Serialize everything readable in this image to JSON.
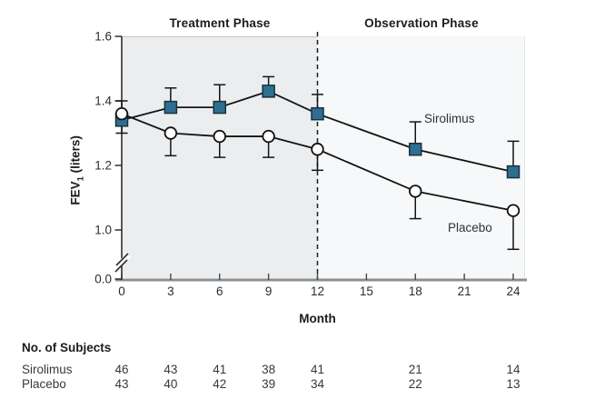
{
  "figure": {
    "y_label": {
      "main": "FEV",
      "sub": "1",
      "units": " (liters)"
    },
    "x_label": "Month"
  },
  "chart_data": {
    "type": "line",
    "title": "",
    "xlabel": "Month",
    "ylabel": "FEV1 (liters)",
    "x": [
      0,
      3,
      6,
      9,
      12,
      18,
      24
    ],
    "xticks": [
      0,
      3,
      6,
      9,
      12,
      15,
      18,
      21,
      24
    ],
    "yticks": [
      0.0,
      1.0,
      1.2,
      1.4,
      1.6
    ],
    "x_range": [
      0,
      24
    ],
    "y_axis_break": true,
    "grid": false,
    "divider_x": 12,
    "phases": [
      {
        "label": "Treatment Phase",
        "x_range": [
          0,
          12
        ],
        "bg": "#ebedef"
      },
      {
        "label": "Observation Phase",
        "x_range": [
          12,
          24
        ],
        "bg": "#f7f8f9"
      }
    ],
    "series": [
      {
        "name": "Sirolimus",
        "marker": "filled-square",
        "fill": "#2e6f91",
        "stroke": "#16323f",
        "values": [
          1.34,
          1.38,
          1.38,
          1.43,
          1.36,
          1.25,
          1.18
        ],
        "error": [
          0.04,
          0.06,
          0.07,
          0.045,
          0.06,
          0.085,
          0.095
        ],
        "error_dir": [
          "down",
          "up",
          "up",
          "up",
          "up",
          "up",
          "up"
        ]
      },
      {
        "name": "Placebo",
        "marker": "open-circle",
        "fill": "#ffffff",
        "stroke": "#101010",
        "values": [
          1.36,
          1.3,
          1.29,
          1.29,
          1.25,
          1.12,
          1.06
        ],
        "error": [
          0.04,
          0.07,
          0.065,
          0.065,
          0.065,
          0.085,
          0.12
        ],
        "error_dir": [
          "up",
          "down",
          "down",
          "down",
          "down",
          "down",
          "down"
        ]
      }
    ]
  },
  "subjects_table": {
    "title": "No. of Subjects",
    "months": [
      0,
      3,
      6,
      9,
      12,
      18,
      24
    ],
    "rows": [
      {
        "label": "Sirolimus",
        "counts": [
          46,
          43,
          41,
          38,
          41,
          21,
          14
        ]
      },
      {
        "label": "Placebo",
        "counts": [
          43,
          40,
          42,
          39,
          34,
          22,
          13
        ]
      }
    ]
  }
}
